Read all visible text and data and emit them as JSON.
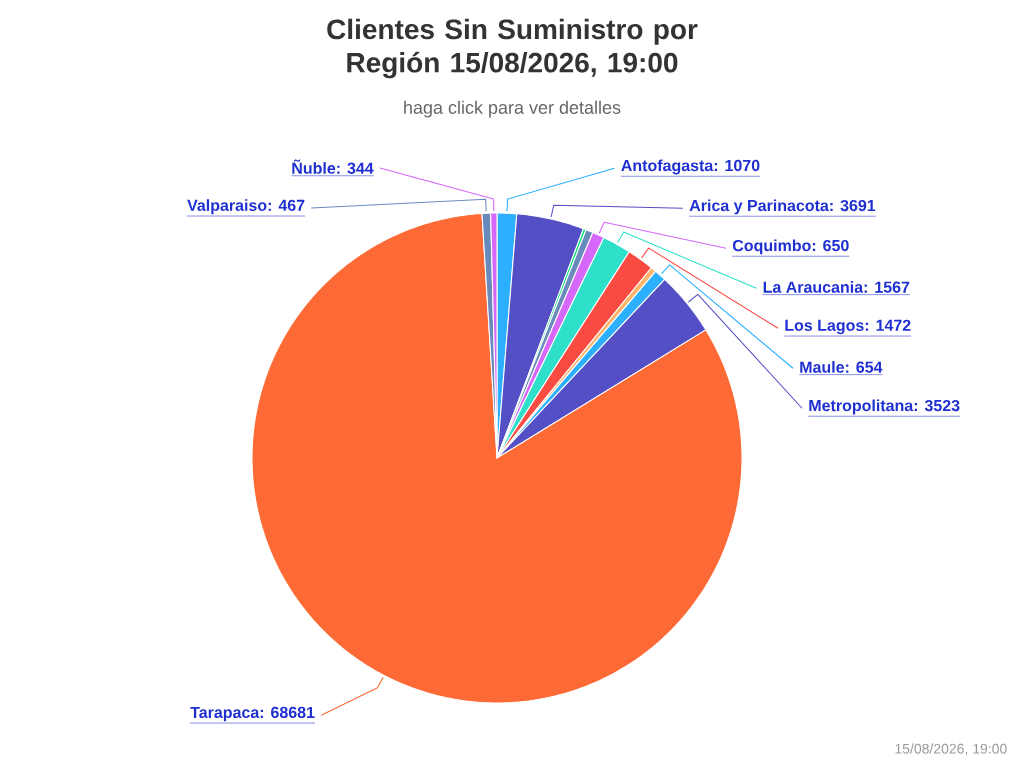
{
  "chart_data": {
    "type": "pie",
    "title": "Clientes Sin Suministro por Región 15/08/2026, 19:00",
    "subtitle": "haga click para ver detalles",
    "categories": [
      "Antofagasta: 1070",
      "Arica y Parinacota: 3691",
      null,
      null,
      "Coquimbo: 650",
      "La Araucania: 1567",
      "Los Lagos: 1472",
      null,
      "Maule: 654",
      "Metropolitana: 3523",
      "Tarapaca: 68681",
      "Valparaiso: 467",
      "Ñuble: 344"
    ],
    "values": [
      1070,
      3691,
      150,
      400,
      650,
      1567,
      1472,
      300,
      654,
      3523,
      68681,
      467,
      344
    ],
    "colors": [
      "#2caffe",
      "#544fc5",
      "#00e272",
      "#6b8abc",
      "#d568fb",
      "#2ee0ca",
      "#fa4b42",
      "#feb56a",
      "#2caffe",
      "#544fc5",
      "#fe6a35",
      "#6b8abc",
      "#d568fb"
    ],
    "annotations": [
      "15/08/2026, 19:00"
    ]
  }
}
